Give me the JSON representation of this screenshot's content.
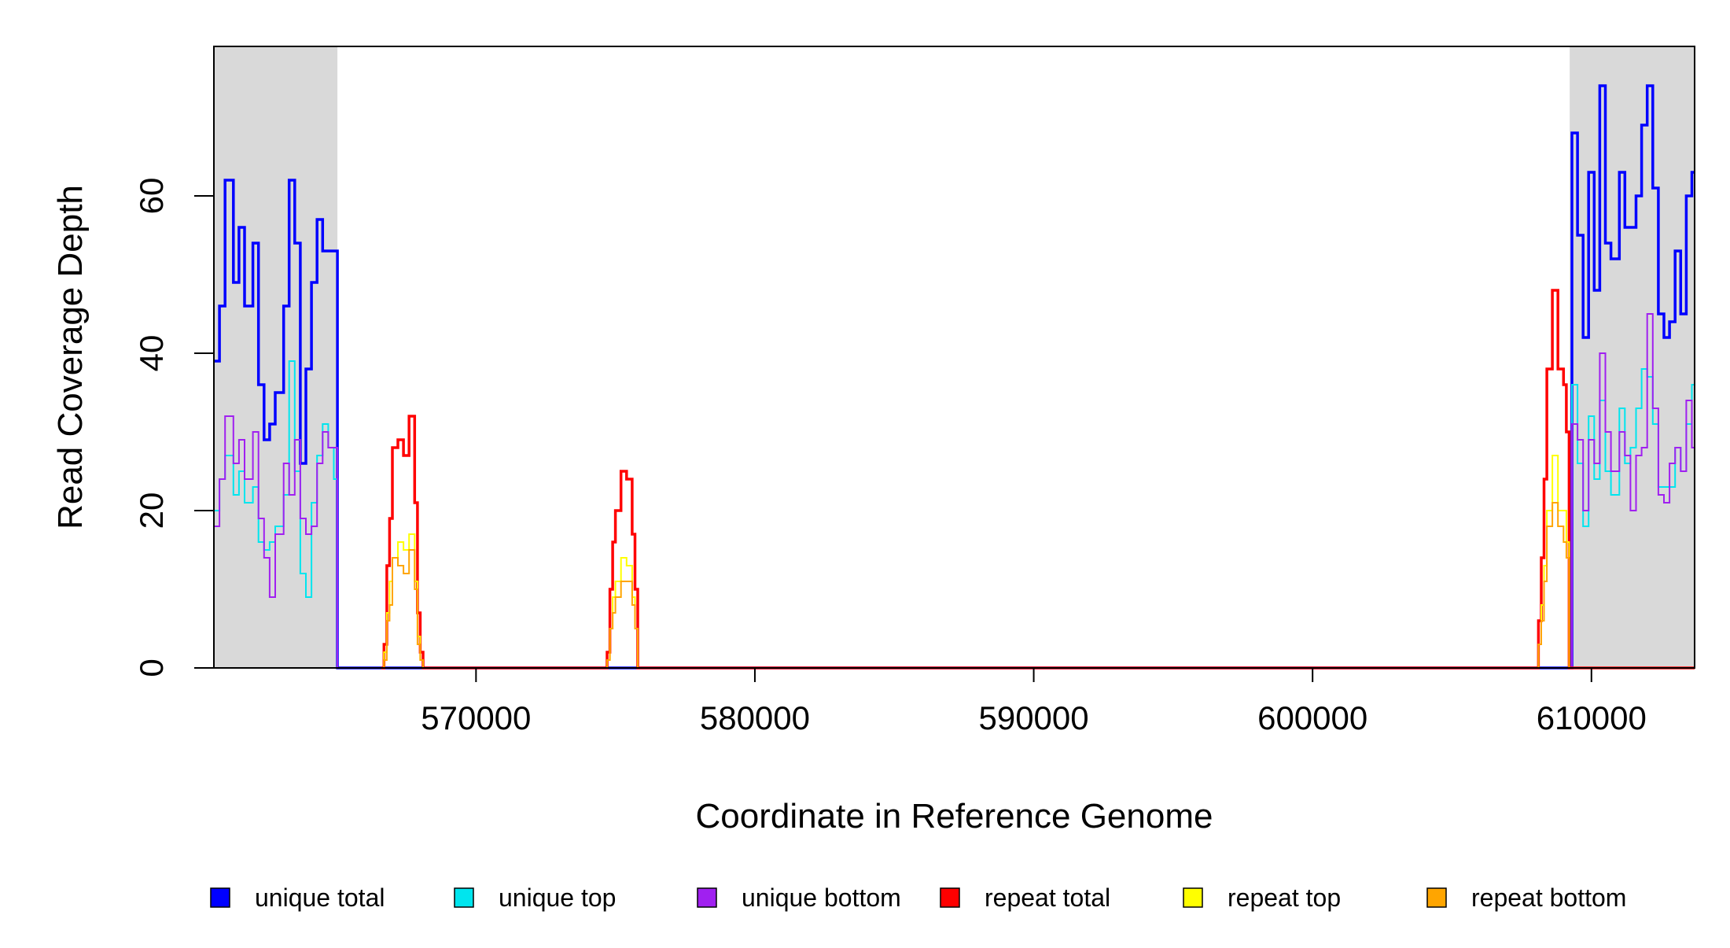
{
  "chart_data": {
    "type": "line",
    "title": "",
    "xlabel": "Coordinate in Reference Genome",
    "ylabel": "Read Coverage Depth",
    "xlim": [
      560600,
      613700
    ],
    "ylim": [
      0,
      79
    ],
    "xticks": [
      570000,
      580000,
      590000,
      600000,
      610000
    ],
    "xtick_labels": [
      "570000",
      "580000",
      "590000",
      "600000",
      "610000"
    ],
    "yticks": [
      0,
      20,
      40,
      60
    ],
    "ytick_labels": [
      "0",
      "20",
      "40",
      "60"
    ],
    "grid": false,
    "legend_position": "bottom",
    "shaded_regions": [
      {
        "x0": 560600,
        "x1": 565030,
        "color": "#d9d9d9"
      },
      {
        "x0": 609220,
        "x1": 613700,
        "color": "#d9d9d9"
      }
    ],
    "series": [
      {
        "name": "unique total",
        "color": "#0000ff",
        "x": [
          560600,
          560800,
          561000,
          561300,
          561500,
          561700,
          562000,
          562200,
          562400,
          562600,
          562800,
          563100,
          563300,
          563500,
          563700,
          563900,
          564100,
          564300,
          564500,
          564700,
          564900,
          565030,
          565100,
          609200,
          609300,
          609500,
          609700,
          609900,
          610100,
          610300,
          610500,
          610700,
          611000,
          611200,
          611400,
          611600,
          611800,
          612000,
          612200,
          612400,
          612600,
          612800,
          613000,
          613200,
          613400,
          613600
        ],
        "values": [
          39,
          46,
          62,
          49,
          56,
          46,
          54,
          36,
          29,
          31,
          35,
          46,
          62,
          54,
          26,
          38,
          49,
          57,
          53,
          53,
          53,
          0,
          0,
          0,
          68,
          55,
          42,
          63,
          48,
          74,
          54,
          52,
          63,
          56,
          56,
          60,
          69,
          74,
          61,
          45,
          42,
          44,
          53,
          45,
          60,
          63
        ]
      },
      {
        "name": "unique top",
        "color": "#00e5ee",
        "x": [
          560600,
          560800,
          561000,
          561300,
          561500,
          561700,
          562000,
          562200,
          562400,
          562600,
          562800,
          563100,
          563300,
          563500,
          563700,
          563900,
          564100,
          564300,
          564500,
          564700,
          564900,
          565030,
          565100,
          609200,
          609300,
          609500,
          609700,
          609900,
          610100,
          610300,
          610500,
          610700,
          611000,
          611200,
          611400,
          611600,
          611800,
          612000,
          612200,
          612400,
          612600,
          612800,
          613000,
          613200,
          613400,
          613600
        ],
        "values": [
          20,
          24,
          27,
          22,
          25,
          21,
          23,
          16,
          15,
          16,
          18,
          22,
          39,
          25,
          12,
          9,
          21,
          27,
          31,
          28,
          24,
          0,
          0,
          0,
          36,
          26,
          18,
          32,
          24,
          34,
          25,
          22,
          33,
          26,
          28,
          33,
          38,
          37,
          31,
          23,
          23,
          23,
          28,
          25,
          31,
          36
        ]
      },
      {
        "name": "unique bottom",
        "color": "#a020f0",
        "x": [
          560600,
          560800,
          561000,
          561300,
          561500,
          561700,
          562000,
          562200,
          562400,
          562600,
          562800,
          563100,
          563300,
          563500,
          563700,
          563900,
          564100,
          564300,
          564500,
          564700,
          564900,
          565030,
          565100,
          609200,
          609300,
          609500,
          609700,
          609900,
          610100,
          610300,
          610500,
          610700,
          611000,
          611200,
          611400,
          611600,
          611800,
          612000,
          612200,
          612400,
          612600,
          612800,
          613000,
          613200,
          613400,
          613600
        ],
        "values": [
          18,
          24,
          32,
          26,
          29,
          24,
          30,
          19,
          14,
          9,
          17,
          26,
          22,
          29,
          19,
          17,
          18,
          26,
          30,
          28,
          28,
          0,
          0,
          0,
          31,
          29,
          20,
          29,
          26,
          40,
          30,
          25,
          30,
          27,
          20,
          27,
          28,
          45,
          33,
          22,
          21,
          26,
          28,
          25,
          34,
          28
        ]
      },
      {
        "name": "repeat total",
        "color": "#ff0000",
        "x": [
          566600,
          566700,
          566800,
          566900,
          567000,
          567200,
          567400,
          567600,
          567800,
          567900,
          568000,
          568100,
          574600,
          574700,
          574800,
          574900,
          575000,
          575200,
          575400,
          575600,
          575700,
          575800,
          608000,
          608100,
          608200,
          608300,
          608400,
          608600,
          608800,
          609000,
          609100,
          609200,
          609300
        ],
        "values": [
          0,
          3,
          13,
          19,
          28,
          29,
          27,
          32,
          21,
          7,
          2,
          0,
          0,
          2,
          10,
          16,
          20,
          25,
          24,
          17,
          10,
          0,
          0,
          6,
          14,
          24,
          38,
          48,
          38,
          36,
          30,
          0,
          0
        ]
      },
      {
        "name": "repeat top",
        "color": "#ffff00",
        "x": [
          566600,
          566700,
          566800,
          566900,
          567000,
          567200,
          567400,
          567600,
          567800,
          567900,
          568000,
          568100,
          574600,
          574700,
          574800,
          574900,
          575000,
          575200,
          575400,
          575600,
          575700,
          575800,
          608000,
          608100,
          608200,
          608300,
          608400,
          608600,
          608800,
          609000,
          609100,
          609200,
          609300
        ],
        "values": [
          0,
          2,
          7,
          11,
          14,
          16,
          15,
          17,
          11,
          4,
          1,
          0,
          0,
          1,
          5,
          9,
          11,
          14,
          13,
          9,
          5,
          0,
          0,
          3,
          8,
          13,
          20,
          27,
          20,
          20,
          16,
          0,
          0
        ]
      },
      {
        "name": "repeat bottom",
        "color": "#ffa500",
        "x": [
          566600,
          566700,
          566800,
          566900,
          567000,
          567200,
          567400,
          567600,
          567800,
          567900,
          568000,
          568100,
          574600,
          574700,
          574800,
          574900,
          575000,
          575200,
          575400,
          575600,
          575700,
          575800,
          608000,
          608100,
          608200,
          608300,
          608400,
          608600,
          608800,
          609000,
          609100,
          609200,
          609300
        ],
        "values": [
          0,
          1,
          6,
          8,
          14,
          13,
          12,
          15,
          10,
          3,
          1,
          0,
          0,
          1,
          5,
          7,
          9,
          11,
          11,
          8,
          5,
          0,
          0,
          3,
          6,
          11,
          18,
          21,
          18,
          16,
          14,
          0,
          0
        ]
      }
    ]
  }
}
